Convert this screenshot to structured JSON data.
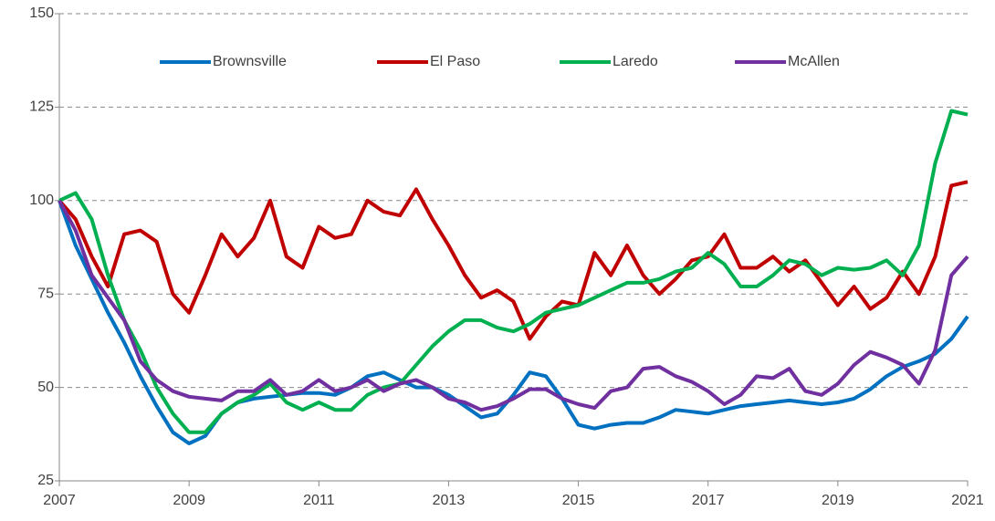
{
  "chart_data": {
    "type": "line",
    "x": [
      2007,
      2007.25,
      2007.5,
      2007.75,
      2008,
      2008.25,
      2008.5,
      2008.75,
      2009,
      2009.25,
      2009.5,
      2009.75,
      2010,
      2010.25,
      2010.5,
      2010.75,
      2011,
      2011.25,
      2011.5,
      2011.75,
      2012,
      2012.25,
      2012.5,
      2012.75,
      2013,
      2013.25,
      2013.5,
      2013.75,
      2014,
      2014.25,
      2014.5,
      2014.75,
      2015,
      2015.25,
      2015.5,
      2015.75,
      2016,
      2016.25,
      2016.5,
      2016.75,
      2017,
      2017.25,
      2017.5,
      2017.75,
      2018,
      2018.25,
      2018.5,
      2018.75,
      2019,
      2019.25,
      2019.5,
      2019.75,
      2020,
      2020.25,
      2020.5,
      2020.75,
      2021
    ],
    "series": [
      {
        "name": "Brownsville",
        "color": "#0070c0",
        "values": [
          100,
          88,
          79,
          70,
          62,
          53,
          45,
          38,
          35,
          37,
          43,
          46,
          47,
          47.5,
          48,
          48.5,
          48.5,
          48,
          50,
          53,
          54,
          52,
          50,
          50,
          48,
          45,
          42,
          43,
          48,
          54,
          53,
          47,
          40,
          39,
          40,
          40.5,
          40.5,
          42,
          44,
          43.5,
          43,
          44,
          45,
          45.5,
          46,
          46.5,
          46,
          45.5,
          46,
          47,
          49.5,
          53,
          55.5,
          57,
          59,
          63,
          69
        ]
      },
      {
        "name": "El Paso",
        "color": "#c00000",
        "values": [
          100,
          95,
          85,
          77,
          91,
          92,
          89,
          75,
          70,
          80,
          91,
          85,
          90,
          100,
          85,
          82,
          93,
          90,
          91,
          100,
          97,
          96,
          103,
          95,
          88,
          80,
          74,
          76,
          73,
          63,
          69,
          73,
          72,
          86,
          80,
          88,
          80,
          75,
          79,
          84,
          85,
          91,
          82,
          82,
          85,
          81,
          84,
          78,
          72,
          77,
          71,
          74,
          81,
          75,
          85,
          104,
          105
        ]
      },
      {
        "name": "Laredo",
        "color": "#00b050",
        "values": [
          100,
          102,
          95,
          80,
          68,
          60,
          50,
          43,
          38,
          38,
          43,
          46,
          48,
          51,
          46,
          44,
          46,
          44,
          44,
          48,
          50,
          51,
          56,
          61,
          65,
          68,
          68,
          66,
          65,
          67,
          70,
          71,
          72,
          74,
          76,
          78,
          78,
          79,
          81,
          82,
          86,
          83,
          77,
          77,
          80,
          84,
          83,
          80,
          82,
          81.5,
          82,
          84,
          80,
          88,
          110,
          124,
          123
        ]
      },
      {
        "name": "McAllen",
        "color": "#7030a0",
        "values": [
          100,
          92,
          80,
          74,
          68,
          57,
          52,
          49,
          47.5,
          47,
          46.5,
          49,
          49,
          52,
          48,
          49,
          52,
          49,
          50,
          52,
          49,
          51,
          52,
          50,
          47,
          46,
          44,
          45,
          47,
          49.5,
          49.5,
          47,
          45.5,
          44.5,
          49,
          50,
          55,
          55.5,
          53,
          51.5,
          49,
          45.5,
          48,
          53,
          52.5,
          55,
          49,
          48,
          51,
          56,
          59.5,
          58,
          56,
          51,
          60,
          80,
          85
        ]
      }
    ],
    "xlim": [
      2007,
      2021
    ],
    "xticks": [
      2007,
      2009,
      2011,
      2013,
      2015,
      2017,
      2019,
      2021
    ],
    "ylim": [
      25,
      150
    ],
    "yticks": [
      25,
      50,
      75,
      100,
      125,
      150
    ],
    "grid": true,
    "legend": "top"
  }
}
